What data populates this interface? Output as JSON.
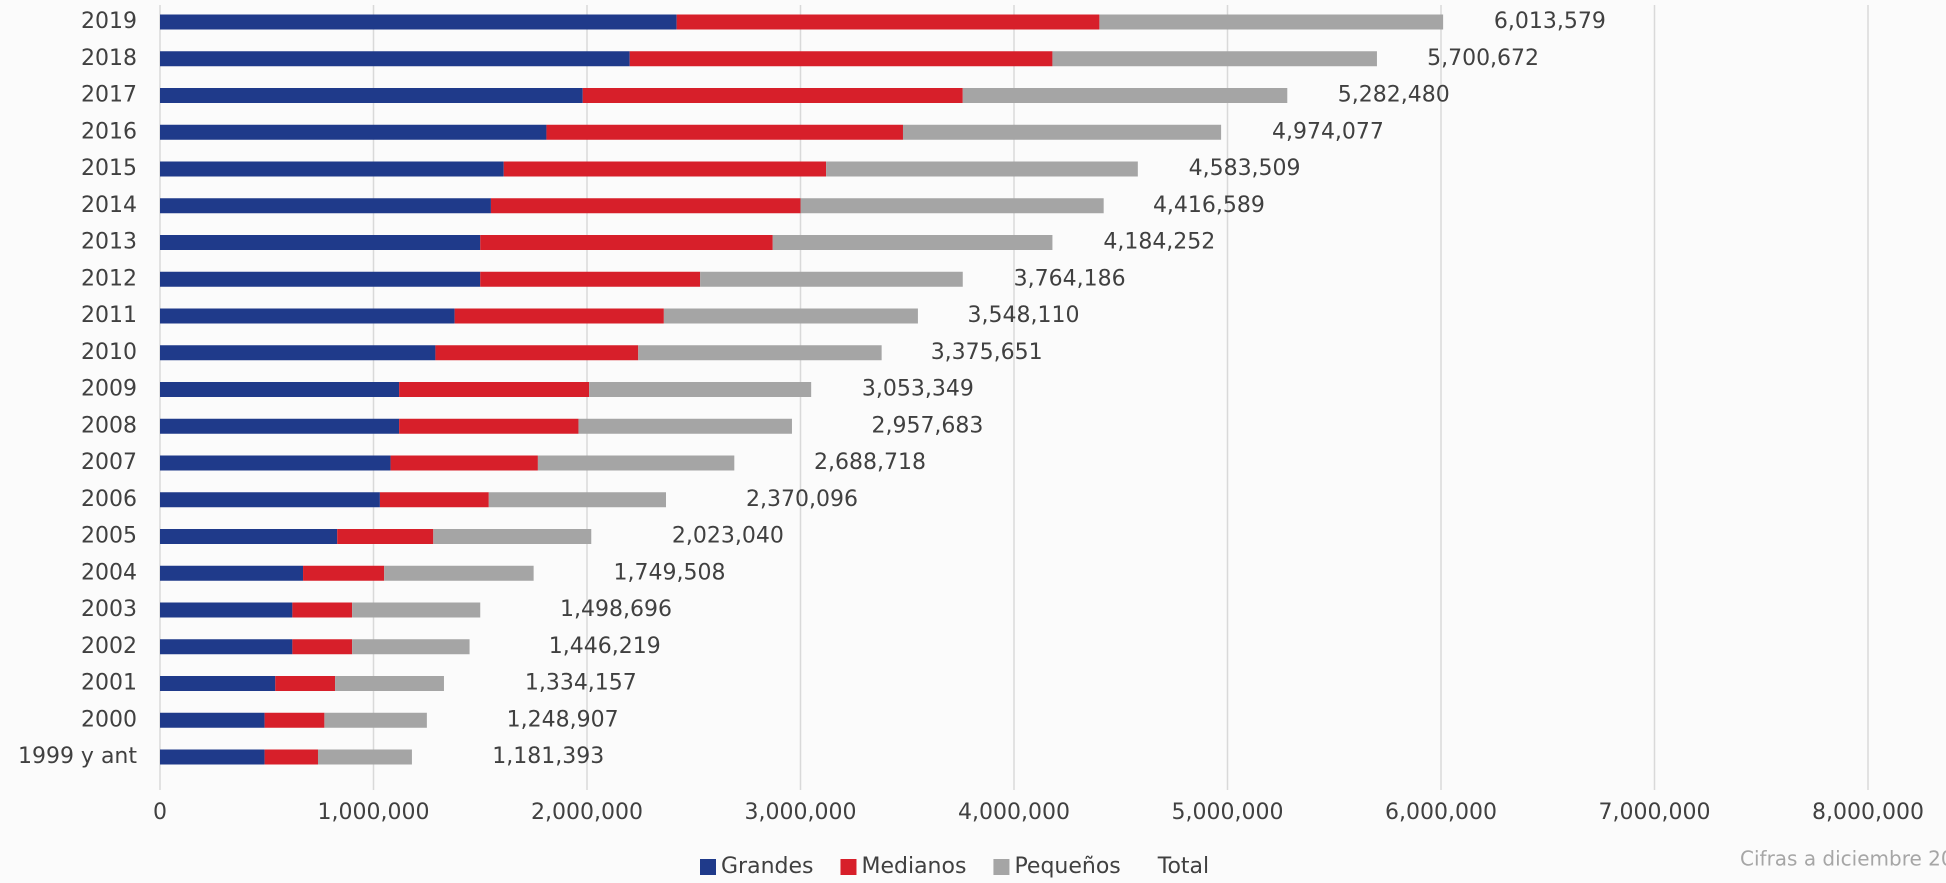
{
  "chart_data": {
    "type": "stacked-barh",
    "categories": [
      "2019",
      "2018",
      "2017",
      "2016",
      "2015",
      "2014",
      "2013",
      "2012",
      "2011",
      "2010",
      "2009",
      "2008",
      "2007",
      "2006",
      "2005",
      "2004",
      "2003",
      "2002",
      "2001",
      "2000",
      "1999 y ant"
    ],
    "series": [
      {
        "name": "Grandes",
        "color": "#1f3a8a",
        "values": [
          2420000,
          2200000,
          1980000,
          1810000,
          1610000,
          1550000,
          1500000,
          1500000,
          1380000,
          1290000,
          1120000,
          1120000,
          1080000,
          1030000,
          830000,
          670000,
          620000,
          620000,
          540000,
          490000,
          490000
        ]
      },
      {
        "name": "Medianos",
        "color": "#d71f2a",
        "values": [
          1980000,
          1980000,
          1780000,
          1670000,
          1510000,
          1450000,
          1370000,
          1030000,
          980000,
          950000,
          890000,
          840000,
          690000,
          510000,
          450000,
          380000,
          280000,
          280000,
          280000,
          280000,
          250000
        ]
      },
      {
        "name": "Pequeños",
        "color": "#a5a5a5",
        "values": [
          1610000,
          1520000,
          1520000,
          1490000,
          1460000,
          1420000,
          1310000,
          1230000,
          1190000,
          1140000,
          1040000,
          1000000,
          920000,
          830000,
          740000,
          700000,
          600000,
          550000,
          510000,
          480000,
          440000
        ]
      }
    ],
    "total": {
      "name": "Total",
      "values": [
        6013579,
        5700672,
        5282480,
        4974077,
        4583509,
        4416589,
        4184252,
        3764186,
        3548110,
        3375651,
        3053349,
        2957683,
        2688718,
        2370096,
        2023040,
        1749508,
        1498696,
        1446219,
        1334157,
        1248907,
        1181393
      ],
      "value_labels": [
        "6,013,579",
        "5,700,672",
        "5,282,480",
        "4,974,077",
        "4,583,509",
        "4,416,589",
        "4,184,252",
        "3,764,186",
        "3,548,110",
        "3,375,651",
        "3,053,349",
        "2,957,683",
        "2,688,718",
        "2,370,096",
        "2,023,040",
        "1,749,508",
        "1,498,696",
        "1,446,219",
        "1,334,157",
        "1,248,907",
        "1,181,393"
      ]
    },
    "xlim": [
      0,
      8000000
    ],
    "xticks": [
      0,
      {
        "value": 1000000,
        "label": "1,000,000"
      },
      {
        "value": 2000000,
        "label": "2,000,000"
      },
      {
        "value": 3000000,
        "label": "3,000,000"
      },
      {
        "value": 4000000,
        "label": "4,000,000"
      },
      {
        "value": 5000000,
        "label": "5,000,000"
      },
      {
        "value": 6000000,
        "label": "6,000,000"
      },
      {
        "value": 7000000,
        "label": "7,000,000"
      },
      {
        "value": 8000000,
        "label": "8,000,000"
      }
    ],
    "grid": true,
    "legend": "bottom",
    "footnote": "Cifras a diciembre 20"
  }
}
